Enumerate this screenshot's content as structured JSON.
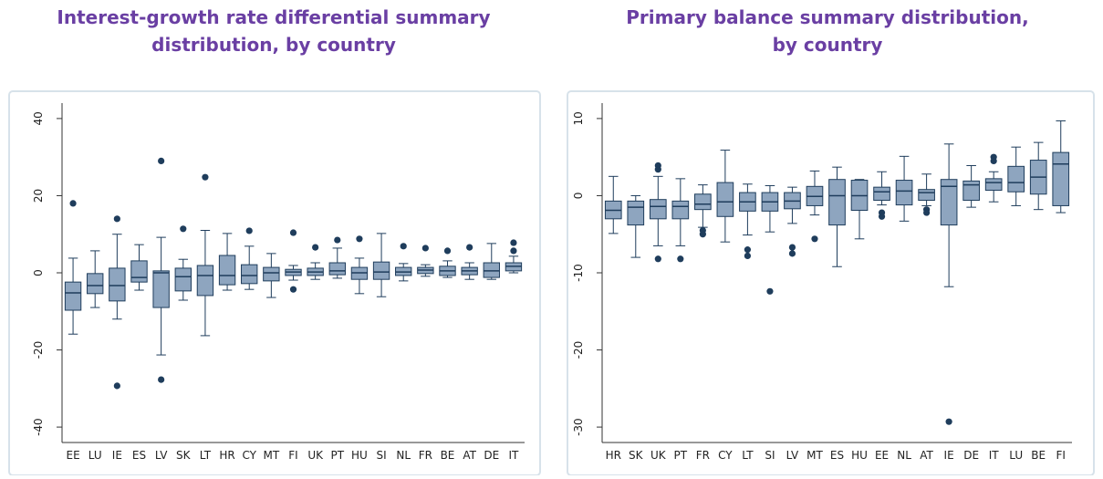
{
  "chart_data": [
    {
      "type": "box",
      "title": [
        "Interest-growth rate differential summary",
        "distribution, by country"
      ],
      "categories": [
        "EE",
        "LU",
        "IE",
        "ES",
        "LV",
        "SK",
        "LT",
        "HR",
        "CY",
        "MT",
        "FI",
        "UK",
        "PT",
        "HU",
        "SI",
        "NL",
        "FR",
        "BE",
        "AT",
        "DE",
        "IT"
      ],
      "min": [
        -15.9,
        -9,
        -12,
        -4.5,
        -21.3,
        -7.1,
        -16.3,
        -4.5,
        -4.3,
        -6.4,
        -1.9,
        -1.7,
        -1.4,
        -5.4,
        -6.2,
        -2.1,
        -0.9,
        -1.2,
        -1.7,
        -1.7,
        0
      ],
      "q1": [
        -9.7,
        -5.4,
        -7.3,
        -2.4,
        -9,
        -4.7,
        -5.9,
        -3.1,
        -2.8,
        -2.1,
        -0.7,
        -0.7,
        -0.5,
        -1.7,
        -1.7,
        -0.7,
        -0.2,
        -0.7,
        -0.5,
        -1.2,
        0.5
      ],
      "median": [
        -5.2,
        -3.3,
        -3.3,
        -1.2,
        0,
        -1,
        -0.7,
        -0.7,
        -0.7,
        0,
        0.2,
        0.2,
        0.5,
        0,
        0.2,
        0.2,
        0.7,
        0.5,
        0.5,
        0.5,
        1.7
      ],
      "q3": [
        -2.4,
        -0.2,
        1.2,
        3.1,
        0.5,
        1.2,
        1.9,
        4.5,
        2.1,
        1.4,
        0.9,
        1.2,
        2.6,
        1.4,
        2.8,
        1.4,
        1.4,
        1.7,
        1.4,
        2.6,
        2.6
      ],
      "max": [
        3.8,
        5.7,
        10,
        7.3,
        9.2,
        3.5,
        11,
        10.2,
        6.9,
        5,
        1.9,
        2.6,
        6.4,
        3.8,
        10.2,
        2.4,
        2.1,
        3.1,
        2.6,
        7.6,
        4.3
      ],
      "outliers": [
        [
          18
        ],
        [],
        [
          14,
          -29.3
        ],
        [],
        [
          29,
          -27.7
        ],
        [
          11.4
        ],
        [
          24.8
        ],
        [],
        [
          10.9
        ],
        [],
        [
          10.4,
          -4.3
        ],
        [
          6.6
        ],
        [
          8.5
        ],
        [
          8.8
        ],
        [],
        [
          6.9
        ],
        [
          6.4
        ],
        [
          5.7
        ],
        [
          6.6
        ],
        [],
        [
          7.8,
          5.7
        ]
      ],
      "ylim": [
        -44,
        44
      ],
      "yticks": [
        -40,
        -20,
        0,
        20,
        40
      ],
      "color": "#8ea5bf",
      "line_color": "#1f3d5c"
    },
    {
      "type": "box",
      "title": [
        "Primary balance summary distribution,",
        "by country"
      ],
      "categories": [
        "HR",
        "SK",
        "UK",
        "PT",
        "FR",
        "CY",
        "LT",
        "SI",
        "LV",
        "MT",
        "ES",
        "HU",
        "EE",
        "NL",
        "AT",
        "IE",
        "DE",
        "IT",
        "LU",
        "BE",
        "FI"
      ],
      "min": [
        -4.9,
        -8,
        -6.5,
        -6.5,
        -4.1,
        -6,
        -5.1,
        -4.7,
        -3.6,
        -2.5,
        -9.2,
        -5.6,
        -1.2,
        -3.3,
        -1.3,
        -11.8,
        -1.5,
        -0.8,
        -1.3,
        -1.8,
        -2.2
      ],
      "q1": [
        -3,
        -3.8,
        -3,
        -3,
        -1.8,
        -2.7,
        -2,
        -2,
        -1.7,
        -1.3,
        -3.8,
        -1.9,
        -0.6,
        -1.2,
        -0.6,
        -3.8,
        -0.6,
        0.7,
        0.5,
        0.2,
        -1.3
      ],
      "median": [
        -1.9,
        -1.5,
        -1.4,
        -1.4,
        -1.1,
        -0.8,
        -0.8,
        -0.8,
        -0.7,
        -0.1,
        0,
        0,
        0.5,
        0.6,
        0.4,
        1.2,
        1.4,
        1.7,
        1.7,
        2.4,
        4.1
      ],
      "q3": [
        -0.7,
        -0.7,
        -0.5,
        -0.7,
        0.2,
        1.7,
        0.4,
        0.4,
        0.4,
        1.2,
        2.1,
        2,
        1.1,
        2,
        0.8,
        2.1,
        1.9,
        2.2,
        3.8,
        4.6,
        5.6
      ],
      "max": [
        2.5,
        0,
        2.5,
        2.2,
        1.4,
        5.9,
        1.5,
        1.3,
        1.1,
        3.2,
        3.7,
        2.1,
        3.1,
        5.1,
        2.8,
        6.7,
        3.9,
        3.1,
        6.3,
        6.9,
        9.7
      ],
      "outliers": [
        [],
        [],
        [
          3.9,
          3.4,
          -8.2
        ],
        [
          -8.2
        ],
        [
          -4.5,
          -5
        ],
        [],
        [
          -7,
          -7.8
        ],
        [
          -12.4
        ],
        [
          -6.7,
          -7.5
        ],
        [
          -5.6
        ],
        [],
        [],
        [
          -2.2,
          -2.7
        ],
        [],
        [
          -1.8,
          -2.2
        ],
        [
          -29.3
        ],
        [],
        [
          5,
          4.5
        ],
        [],
        [],
        []
      ],
      "ylim": [
        -32,
        12
      ],
      "yticks": [
        -30,
        -20,
        -10,
        0,
        10
      ],
      "color": "#8ea5bf",
      "line_color": "#1f3d5c"
    }
  ]
}
